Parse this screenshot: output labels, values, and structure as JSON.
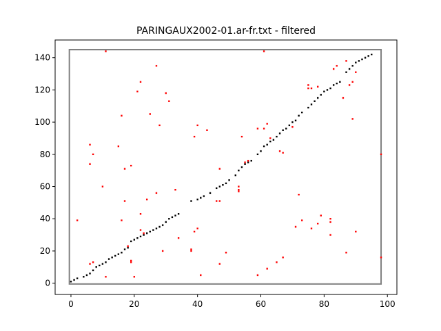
{
  "chart_data": {
    "type": "scatter",
    "title": "PARINGAUX2002-01.ar-fr.txt - filtered",
    "xlabel": "",
    "ylabel": "",
    "xlim": [
      -5,
      103
    ],
    "ylim": [
      -7,
      151
    ],
    "x_ticks": [
      0,
      20,
      40,
      60,
      80,
      100
    ],
    "y_ticks": [
      0,
      20,
      40,
      60,
      80,
      100,
      120,
      140
    ],
    "grid": false,
    "legend": "none",
    "colors": {
      "axes": "#000000",
      "frame": "#808080",
      "black_points": "#000000",
      "red_points": "#ff0000"
    },
    "frame_box": {
      "x": [
        -0.5,
        98
      ],
      "y": [
        -0.5,
        145
      ]
    },
    "series": [
      {
        "color": "#000000",
        "points": [
          [
            0,
            1
          ],
          [
            1,
            2
          ],
          [
            2,
            3
          ],
          [
            4,
            4
          ],
          [
            5,
            5
          ],
          [
            6,
            6
          ],
          [
            7,
            8
          ],
          [
            8,
            10
          ],
          [
            9,
            11
          ],
          [
            10,
            12
          ],
          [
            11,
            13
          ],
          [
            12,
            15
          ],
          [
            13,
            16
          ],
          [
            14,
            17
          ],
          [
            15,
            18
          ],
          [
            16,
            19
          ],
          [
            17,
            21
          ],
          [
            18,
            22
          ],
          [
            19,
            26
          ],
          [
            20,
            27
          ],
          [
            21,
            28
          ],
          [
            22,
            29
          ],
          [
            23,
            30
          ],
          [
            24,
            31
          ],
          [
            25,
            32
          ],
          [
            26,
            33
          ],
          [
            27,
            34
          ],
          [
            28,
            35
          ],
          [
            29,
            36
          ],
          [
            30,
            38
          ],
          [
            31,
            40
          ],
          [
            32,
            41
          ],
          [
            33,
            42
          ],
          [
            34,
            43
          ],
          [
            38,
            51
          ],
          [
            40,
            52
          ],
          [
            41,
            53
          ],
          [
            42,
            54
          ],
          [
            44,
            56
          ],
          [
            46,
            59
          ],
          [
            47,
            60
          ],
          [
            48,
            61
          ],
          [
            49,
            62
          ],
          [
            50,
            64
          ],
          [
            52,
            67
          ],
          [
            53,
            70
          ],
          [
            54,
            72
          ],
          [
            55,
            74
          ],
          [
            56,
            75
          ],
          [
            57,
            76
          ],
          [
            59,
            80
          ],
          [
            60,
            82
          ],
          [
            61,
            85
          ],
          [
            62,
            86
          ],
          [
            63,
            88
          ],
          [
            64,
            89
          ],
          [
            65,
            91
          ],
          [
            66,
            93
          ],
          [
            67,
            95
          ],
          [
            68,
            96
          ],
          [
            69,
            98
          ],
          [
            70,
            100
          ],
          [
            71,
            101
          ],
          [
            72,
            104
          ],
          [
            73,
            106
          ],
          [
            75,
            109
          ],
          [
            76,
            111
          ],
          [
            77,
            113
          ],
          [
            78,
            115
          ],
          [
            79,
            117
          ],
          [
            80,
            119
          ],
          [
            81,
            120
          ],
          [
            82,
            121
          ],
          [
            83,
            123
          ],
          [
            84,
            124
          ],
          [
            85,
            125
          ],
          [
            87,
            131
          ],
          [
            88,
            133
          ],
          [
            89,
            135
          ],
          [
            90,
            137
          ],
          [
            91,
            138
          ],
          [
            92,
            139
          ],
          [
            93,
            140
          ],
          [
            94,
            141
          ],
          [
            95,
            142
          ]
        ]
      },
      {
        "color": "#ff0000",
        "points": [
          [
            2,
            39
          ],
          [
            6,
            12
          ],
          [
            6,
            86
          ],
          [
            6,
            74
          ],
          [
            7,
            13
          ],
          [
            7,
            80
          ],
          [
            10,
            60
          ],
          [
            11,
            144
          ],
          [
            11,
            4
          ],
          [
            15,
            85
          ],
          [
            16,
            104
          ],
          [
            16,
            39
          ],
          [
            17,
            71
          ],
          [
            17,
            51
          ],
          [
            18,
            23
          ],
          [
            19,
            73
          ],
          [
            19,
            14
          ],
          [
            19,
            13
          ],
          [
            20,
            4
          ],
          [
            21,
            119
          ],
          [
            22,
            125
          ],
          [
            22,
            43
          ],
          [
            22,
            33
          ],
          [
            23,
            31
          ],
          [
            24,
            52
          ],
          [
            25,
            105
          ],
          [
            27,
            135
          ],
          [
            27,
            56
          ],
          [
            28,
            98
          ],
          [
            29,
            20
          ],
          [
            30,
            118
          ],
          [
            31,
            113
          ],
          [
            33,
            58
          ],
          [
            34,
            28
          ],
          [
            38,
            21
          ],
          [
            38,
            20
          ],
          [
            39,
            91
          ],
          [
            39,
            32
          ],
          [
            40,
            98
          ],
          [
            40,
            34
          ],
          [
            41,
            5
          ],
          [
            43,
            95
          ],
          [
            46,
            51
          ],
          [
            47,
            71
          ],
          [
            47,
            51
          ],
          [
            47,
            12
          ],
          [
            49,
            19
          ],
          [
            53,
            57
          ],
          [
            53,
            58
          ],
          [
            53,
            60
          ],
          [
            54,
            91
          ],
          [
            55,
            75
          ],
          [
            56,
            76
          ],
          [
            59,
            96
          ],
          [
            59,
            5
          ],
          [
            61,
            144
          ],
          [
            61,
            96
          ],
          [
            62,
            99
          ],
          [
            62,
            9
          ],
          [
            63,
            90
          ],
          [
            65,
            13
          ],
          [
            66,
            82
          ],
          [
            67,
            81
          ],
          [
            67,
            16
          ],
          [
            70,
            97
          ],
          [
            71,
            35
          ],
          [
            72,
            55
          ],
          [
            73,
            39
          ],
          [
            75,
            123
          ],
          [
            75,
            121
          ],
          [
            76,
            121
          ],
          [
            76,
            34
          ],
          [
            78,
            122
          ],
          [
            78,
            37
          ],
          [
            79,
            42
          ],
          [
            82,
            40
          ],
          [
            82,
            38
          ],
          [
            82,
            30
          ],
          [
            83,
            133
          ],
          [
            84,
            135
          ],
          [
            86,
            115
          ],
          [
            87,
            138
          ],
          [
            87,
            19
          ],
          [
            88,
            123
          ],
          [
            89,
            125
          ],
          [
            89,
            102
          ],
          [
            90,
            131
          ],
          [
            90,
            32
          ],
          [
            98,
            80
          ],
          [
            98,
            16
          ]
        ]
      }
    ]
  }
}
